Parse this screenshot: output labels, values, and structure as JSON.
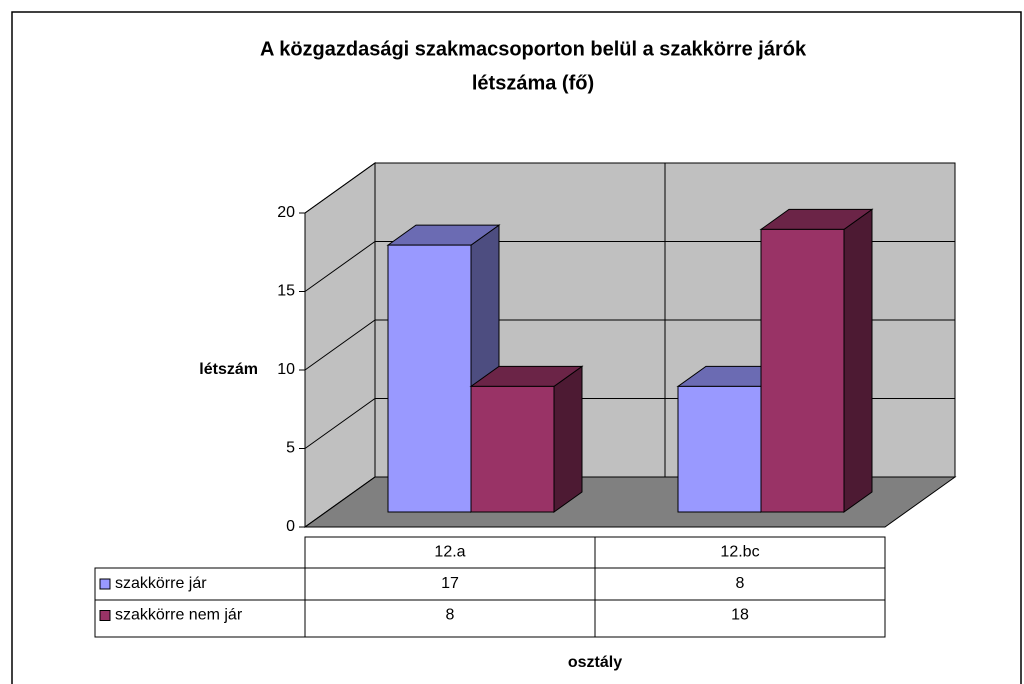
{
  "chart_data": {
    "type": "bar3d",
    "title": [
      "A közgazdasági szakmacsoporton belül a szakkörre járók",
      "létszáma (fő)"
    ],
    "ylabel": "létszám",
    "xlabel": "osztály",
    "categories": [
      "12.a",
      "12.bc"
    ],
    "series": [
      {
        "name": "szakkörre jár",
        "color": "#9999ff",
        "values": [
          17,
          8
        ]
      },
      {
        "name": "szakkörre nem jár",
        "color": "#993366",
        "values": [
          8,
          18
        ]
      }
    ],
    "ylim": [
      0,
      20
    ],
    "yticks": [
      0,
      5,
      10,
      15,
      20
    ],
    "grid": true,
    "data_table": true
  }
}
